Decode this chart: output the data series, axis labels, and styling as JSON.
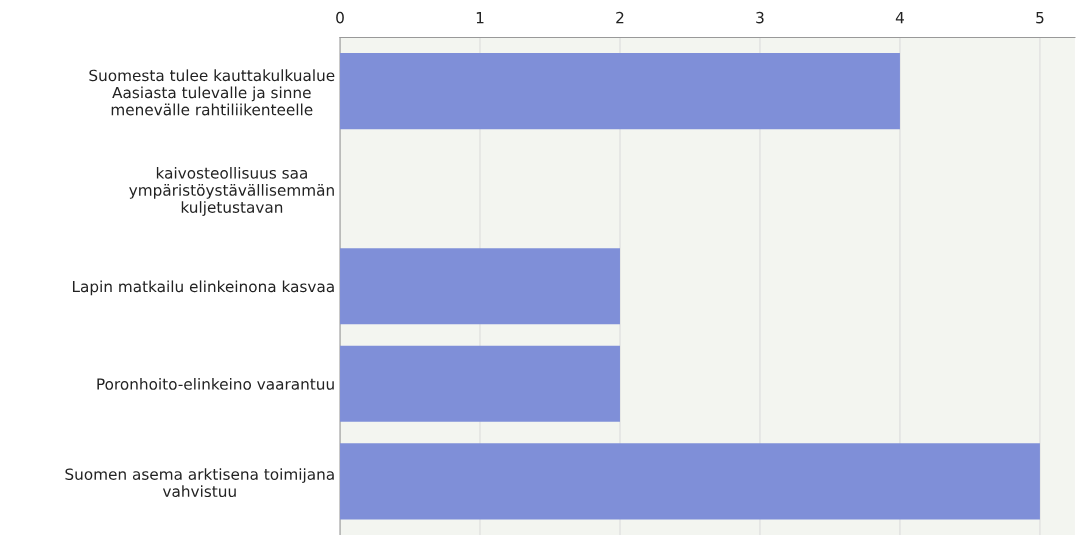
{
  "chart_data": {
    "type": "bar",
    "orientation": "horizontal",
    "categories": [
      "Suomesta tulee kauttakulkualue\nAasiasta tulevalle ja sinne\nmenevälle rahtiliikenteelle",
      "kaivosteollisuus saa\nympäristöystävällisemmän\nkuljetustavan",
      "Lapin matkailu elinkeinona kasvaa",
      "Poronhoito-elinkeino vaarantuu",
      "Suomen asema arktisena toimijana\nvahvistuu"
    ],
    "values": [
      4,
      0,
      2,
      2,
      5
    ],
    "color": "#7f8fd8",
    "xlim": [
      0,
      5.25
    ],
    "xticks": [
      0,
      1,
      2,
      3,
      4,
      5
    ],
    "grid": "x"
  }
}
